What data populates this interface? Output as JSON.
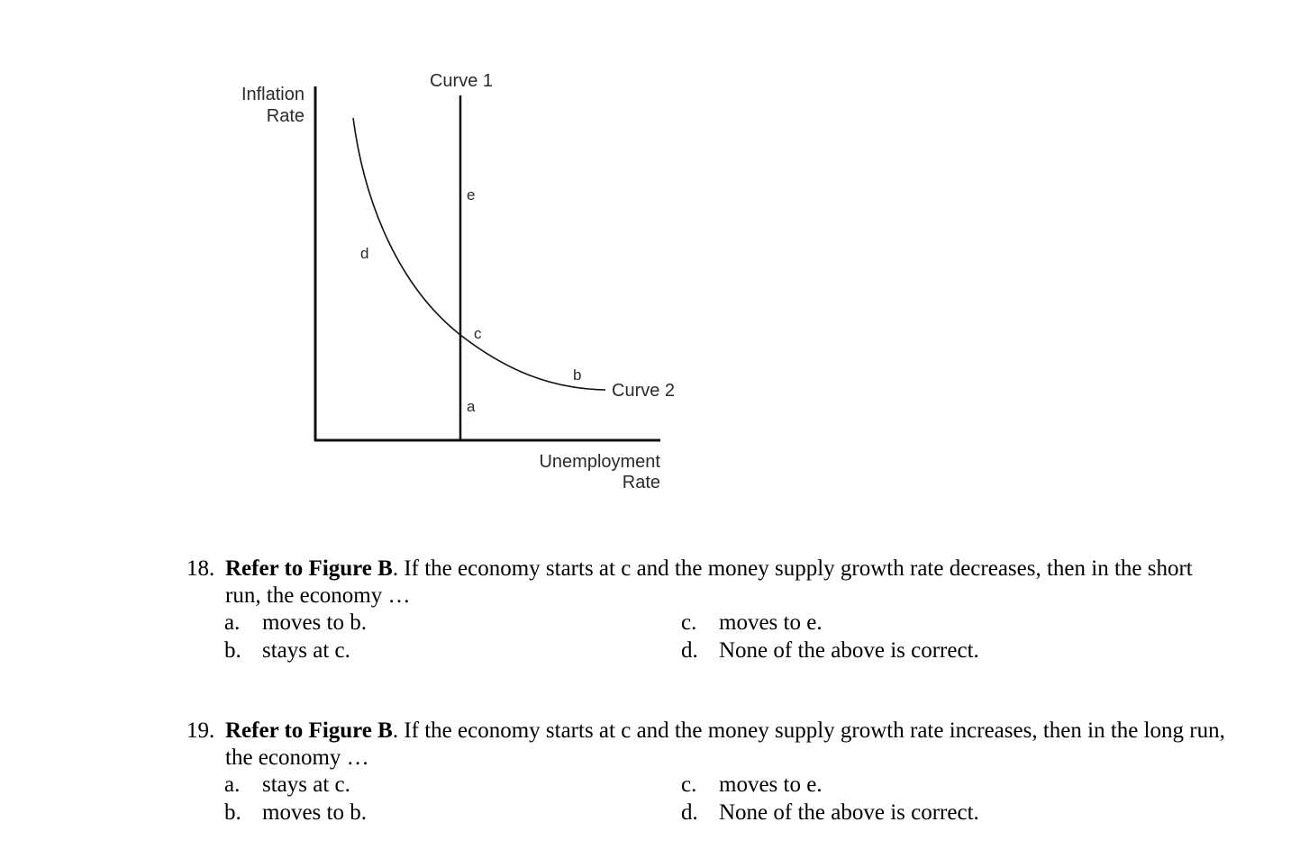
{
  "figure": {
    "y_axis_label": [
      "Inflation",
      "Rate"
    ],
    "x_axis_label": [
      "Unemployment",
      "Rate"
    ],
    "curve1_label": "Curve 1",
    "curve2_label": "Curve 2",
    "points": {
      "a": "a",
      "b": "b",
      "c": "c",
      "d": "d",
      "e": "e"
    }
  },
  "questions": [
    {
      "number": "18.",
      "lead": "Refer to Figure B",
      "rest": ". If the economy starts at c and the money supply growth rate decreases, then in the short run, the economy …",
      "options": [
        {
          "letter": "a.",
          "text": "moves to b."
        },
        {
          "letter": "b.",
          "text": "stays at c."
        },
        {
          "letter": "c.",
          "text": "moves to e."
        },
        {
          "letter": "d.",
          "text": "None of the above is correct."
        }
      ]
    },
    {
      "number": "19.",
      "lead": "Refer to Figure B",
      "rest": ". If the economy starts at c and the money supply growth rate increases, then in the long run, the economy …",
      "options": [
        {
          "letter": "a.",
          "text": "stays at c."
        },
        {
          "letter": "b.",
          "text": "moves to b."
        },
        {
          "letter": "c.",
          "text": "moves to e."
        },
        {
          "letter": "d.",
          "text": "None of the above is correct."
        }
      ]
    }
  ]
}
